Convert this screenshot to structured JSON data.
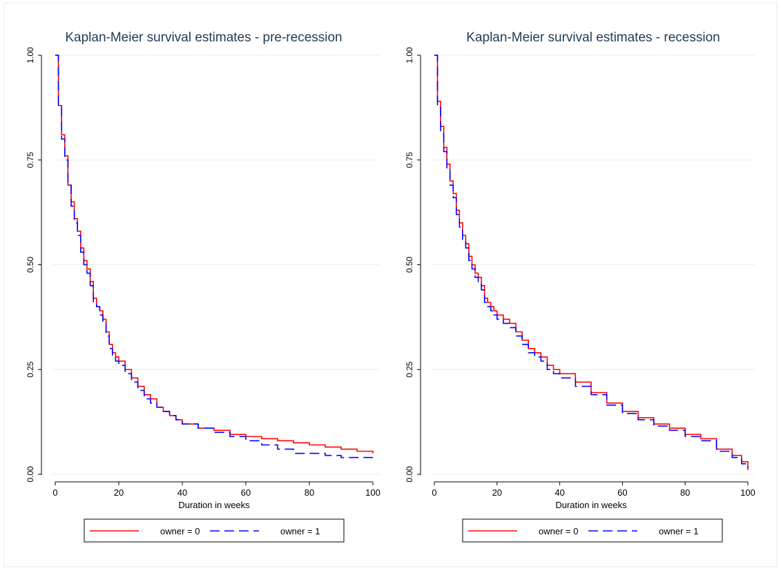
{
  "chart_data": [
    {
      "type": "line",
      "title": "Kaplan-Meier survival estimates - pre-recession",
      "xlabel": "Duration in weeks",
      "ylabel": "",
      "xlim": [
        0,
        100
      ],
      "ylim": [
        0,
        1
      ],
      "xticks": [
        "0",
        "20",
        "40",
        "60",
        "80",
        "100"
      ],
      "yticks": [
        "0.00",
        "0.25",
        "0.50",
        "0.75",
        "1.00"
      ],
      "grid": "horizontal",
      "legend_position": "bottom",
      "series": [
        {
          "name": "owner = 0",
          "color": "#ff0000",
          "dash": "solid",
          "x": [
            0,
            1,
            2,
            3,
            4,
            5,
            6,
            7,
            8,
            9,
            10,
            11,
            12,
            13,
            14,
            15,
            16,
            17,
            18,
            19,
            20,
            22,
            24,
            26,
            28,
            30,
            32,
            34,
            36,
            38,
            40,
            45,
            50,
            55,
            60,
            65,
            70,
            75,
            80,
            85,
            90,
            95,
            100
          ],
          "y": [
            1.0,
            0.88,
            0.81,
            0.76,
            0.69,
            0.65,
            0.61,
            0.58,
            0.54,
            0.51,
            0.49,
            0.46,
            0.42,
            0.4,
            0.39,
            0.37,
            0.34,
            0.31,
            0.29,
            0.28,
            0.27,
            0.25,
            0.23,
            0.21,
            0.19,
            0.18,
            0.16,
            0.15,
            0.14,
            0.13,
            0.12,
            0.11,
            0.105,
            0.095,
            0.09,
            0.085,
            0.08,
            0.075,
            0.07,
            0.065,
            0.06,
            0.055,
            0.05
          ]
        },
        {
          "name": "owner = 1",
          "color": "#0000ff",
          "dash": "dashed",
          "x": [
            0,
            1,
            2,
            3,
            4,
            5,
            6,
            7,
            8,
            9,
            10,
            11,
            12,
            13,
            14,
            15,
            16,
            17,
            18,
            19,
            20,
            22,
            24,
            26,
            28,
            30,
            32,
            34,
            36,
            38,
            40,
            45,
            50,
            55,
            60,
            65,
            70,
            75,
            80,
            85,
            90,
            95,
            100
          ],
          "y": [
            1.0,
            0.88,
            0.8,
            0.75,
            0.69,
            0.64,
            0.6,
            0.57,
            0.53,
            0.5,
            0.48,
            0.45,
            0.41,
            0.4,
            0.38,
            0.36,
            0.33,
            0.3,
            0.28,
            0.27,
            0.26,
            0.24,
            0.22,
            0.2,
            0.18,
            0.17,
            0.16,
            0.15,
            0.14,
            0.13,
            0.12,
            0.11,
            0.1,
            0.09,
            0.08,
            0.07,
            0.06,
            0.05,
            0.05,
            0.045,
            0.04,
            0.04,
            0.04
          ]
        }
      ]
    },
    {
      "type": "line",
      "title": "Kaplan-Meier survival estimates - recession",
      "xlabel": "Duration in weeks",
      "ylabel": "",
      "xlim": [
        0,
        100
      ],
      "ylim": [
        0,
        1
      ],
      "xticks": [
        "0",
        "20",
        "40",
        "60",
        "80",
        "100"
      ],
      "yticks": [
        "0.00",
        "0.25",
        "0.50",
        "0.75",
        "1.00"
      ],
      "grid": "horizontal",
      "legend_position": "bottom",
      "series": [
        {
          "name": "owner = 0",
          "color": "#ff0000",
          "dash": "solid",
          "x": [
            0,
            1,
            2,
            3,
            4,
            5,
            6,
            7,
            8,
            9,
            10,
            11,
            12,
            13,
            14,
            15,
            16,
            17,
            18,
            19,
            20,
            22,
            24,
            26,
            28,
            30,
            32,
            34,
            36,
            38,
            40,
            45,
            50,
            55,
            60,
            65,
            70,
            75,
            80,
            85,
            90,
            95,
            98,
            100
          ],
          "y": [
            1.0,
            0.89,
            0.83,
            0.78,
            0.74,
            0.7,
            0.67,
            0.63,
            0.6,
            0.57,
            0.55,
            0.52,
            0.5,
            0.48,
            0.47,
            0.45,
            0.42,
            0.41,
            0.4,
            0.39,
            0.38,
            0.37,
            0.36,
            0.34,
            0.32,
            0.3,
            0.29,
            0.28,
            0.26,
            0.25,
            0.24,
            0.22,
            0.195,
            0.17,
            0.15,
            0.135,
            0.12,
            0.11,
            0.095,
            0.085,
            0.06,
            0.045,
            0.03,
            0.01
          ]
        },
        {
          "name": "owner = 1",
          "color": "#0000ff",
          "dash": "dashed",
          "x": [
            0,
            1,
            2,
            3,
            4,
            5,
            6,
            7,
            8,
            9,
            10,
            11,
            12,
            13,
            14,
            15,
            16,
            17,
            18,
            19,
            20,
            22,
            24,
            26,
            28,
            30,
            32,
            34,
            36,
            38,
            40,
            45,
            50,
            55,
            60,
            65,
            70,
            75,
            80,
            85,
            90,
            95,
            98,
            100
          ],
          "y": [
            1.0,
            0.88,
            0.82,
            0.77,
            0.73,
            0.69,
            0.66,
            0.62,
            0.59,
            0.56,
            0.54,
            0.51,
            0.49,
            0.47,
            0.46,
            0.44,
            0.41,
            0.4,
            0.39,
            0.38,
            0.37,
            0.36,
            0.35,
            0.33,
            0.31,
            0.29,
            0.28,
            0.27,
            0.25,
            0.24,
            0.23,
            0.21,
            0.19,
            0.165,
            0.145,
            0.13,
            0.115,
            0.105,
            0.09,
            0.08,
            0.055,
            0.04,
            0.025,
            0.015
          ]
        }
      ]
    }
  ]
}
